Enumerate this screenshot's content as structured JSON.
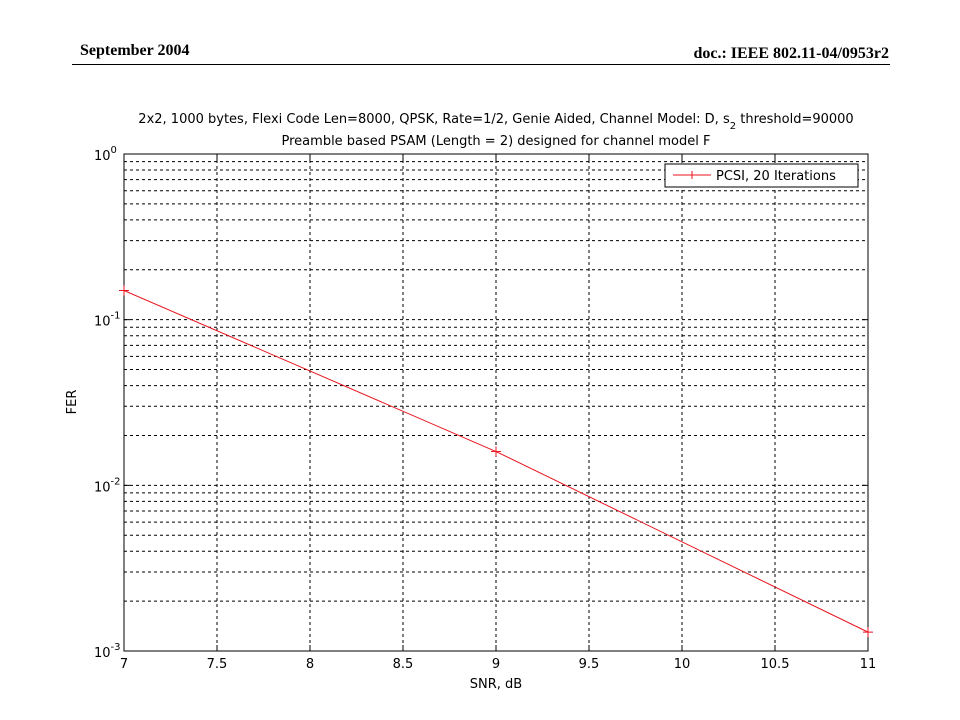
{
  "header": {
    "date": "September 2004",
    "doc_id": "doc.: IEEE 802.11-04/0953r2"
  },
  "chart_data": {
    "type": "line",
    "title_line1": "2x2, 1000 bytes, Flexi Code Len=8000, QPSK, Rate=1/2, Genie Aided, Channel Model: D, s",
    "title_subscript": "2",
    "title_line1_tail": " threshold=90000",
    "title_line2": "Preamble based PSAM (Length = 2) designed for channel model F",
    "xlabel": "SNR, dB",
    "ylabel": "FER",
    "xlim": [
      7,
      11
    ],
    "ylim": [
      0.001,
      1
    ],
    "yscale": "log",
    "grid": true,
    "legend_position": "top-right",
    "x_ticks": [
      "7",
      "7.5",
      "8",
      "8.5",
      "9",
      "9.5",
      "10",
      "10.5",
      "11"
    ],
    "y_tick_base": "10",
    "y_tick_exponents": [
      "0",
      "-1",
      "-2",
      "-3"
    ],
    "series": [
      {
        "name": "PCSI, 20 Iterations",
        "color": "#e8141e",
        "marker": "plus",
        "x": [
          7,
          9,
          11
        ],
        "y": [
          0.15,
          0.016,
          0.0013
        ]
      }
    ]
  }
}
